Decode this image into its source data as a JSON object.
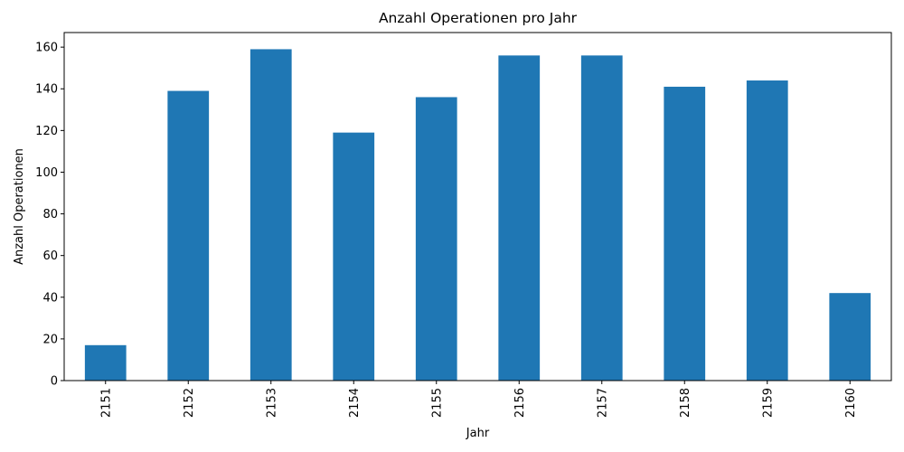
{
  "chart_data": {
    "type": "bar",
    "title": "Anzahl Operationen pro Jahr",
    "xlabel": "Jahr",
    "ylabel": "Anzahl Operationen",
    "categories": [
      "2151",
      "2152",
      "2153",
      "2154",
      "2155",
      "2156",
      "2157",
      "2158",
      "2159",
      "2160"
    ],
    "values": [
      17,
      139,
      159,
      119,
      136,
      156,
      156,
      141,
      144,
      42
    ],
    "ylim": [
      0,
      167
    ],
    "yticks": [
      0,
      20,
      40,
      60,
      80,
      100,
      120,
      140,
      160
    ],
    "bar_color": "#1f77b4",
    "grid": false,
    "legend": "none"
  }
}
